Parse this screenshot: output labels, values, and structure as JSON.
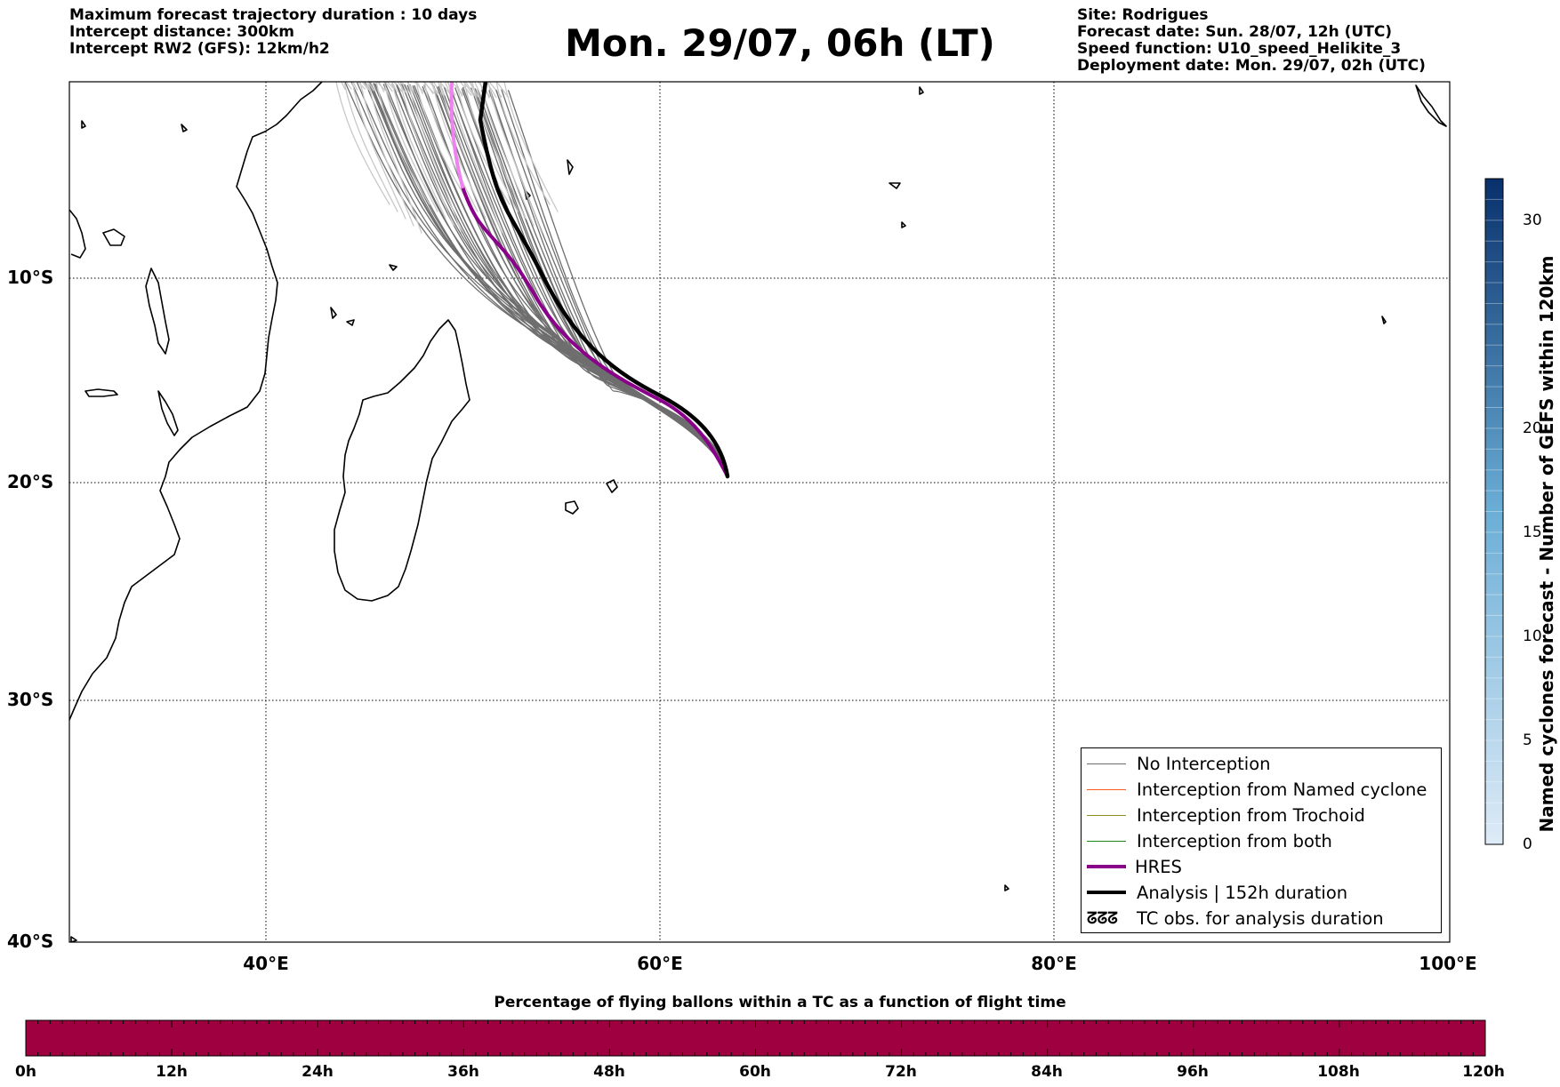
{
  "header": {
    "left_lines": [
      "Maximum forecast trajectory duration : 10 days",
      "Intercept distance: 300km",
      "Intercept RW2 (GFS):  12km/h2"
    ],
    "title": "Mon. 29/07, 06h (LT)",
    "right_lines": [
      "Site: Rodrigues",
      "Forecast date: Sun. 28/07, 12h (UTC)",
      "Speed function: U10_speed_Helikite_3",
      "Deployment date: Mon. 29/07, 02h (UTC)"
    ]
  },
  "map": {
    "lat_labels": [
      "10°S",
      "20°S",
      "30°S",
      "40°S"
    ],
    "lon_labels": [
      "40°E",
      "60°E",
      "80°E",
      "100°E"
    ],
    "extent": {
      "lon_min": 30,
      "lon_max": 100,
      "lat_min": -40,
      "lat_max": 0
    },
    "grid": "dotted",
    "release_site": {
      "name": "Rodrigues",
      "lon": 63.4,
      "lat": -19.7
    },
    "colors": {
      "no_interception": "#6e6e6e",
      "no_interception_far": "#c8c8c8",
      "named_cyclone": "#ff5a1e",
      "trochoid": "#8b8b1e",
      "both": "#1e8b1e",
      "hres": "#8b008b",
      "hres_far": "#ee82ee",
      "analysis": "#000000"
    }
  },
  "legend": {
    "items": [
      {
        "label": "No Interception",
        "color": "#6e6e6e",
        "style": "thin"
      },
      {
        "label": "Interception from Named cyclone",
        "color": "#ff5a1e",
        "style": "thin"
      },
      {
        "label": "Interception from Trochoid",
        "color": "#8b8b1e",
        "style": "thin"
      },
      {
        "label": "Interception from both",
        "color": "#1e8b1e",
        "style": "thin"
      },
      {
        "label": "HRES",
        "color": "#8b008b",
        "style": "thick"
      },
      {
        "label": "Analysis | 152h duration",
        "color": "#000000",
        "style": "thick"
      }
    ],
    "tc_symbol": "ᘔᘔᘔ",
    "tc_label": "TC obs. for analysis duration",
    "placement": "bottom-right"
  },
  "vertical_colorbar": {
    "label": "Named cyclones forecast - Number of GEFS within 120km",
    "ticks": [
      "0",
      "5",
      "10",
      "15",
      "20",
      "30"
    ],
    "range": [
      0,
      32
    ],
    "color_low": "#deebf7",
    "color_high": "#08306b"
  },
  "bottom_colorbar": {
    "title": "Percentage of flying ballons within a TC as a function of flight time",
    "ticks": [
      "0h",
      "12h",
      "24h",
      "36h",
      "48h",
      "60h",
      "72h",
      "84h",
      "96h",
      "108h",
      "120h"
    ],
    "fill_color": "#9e0040"
  }
}
